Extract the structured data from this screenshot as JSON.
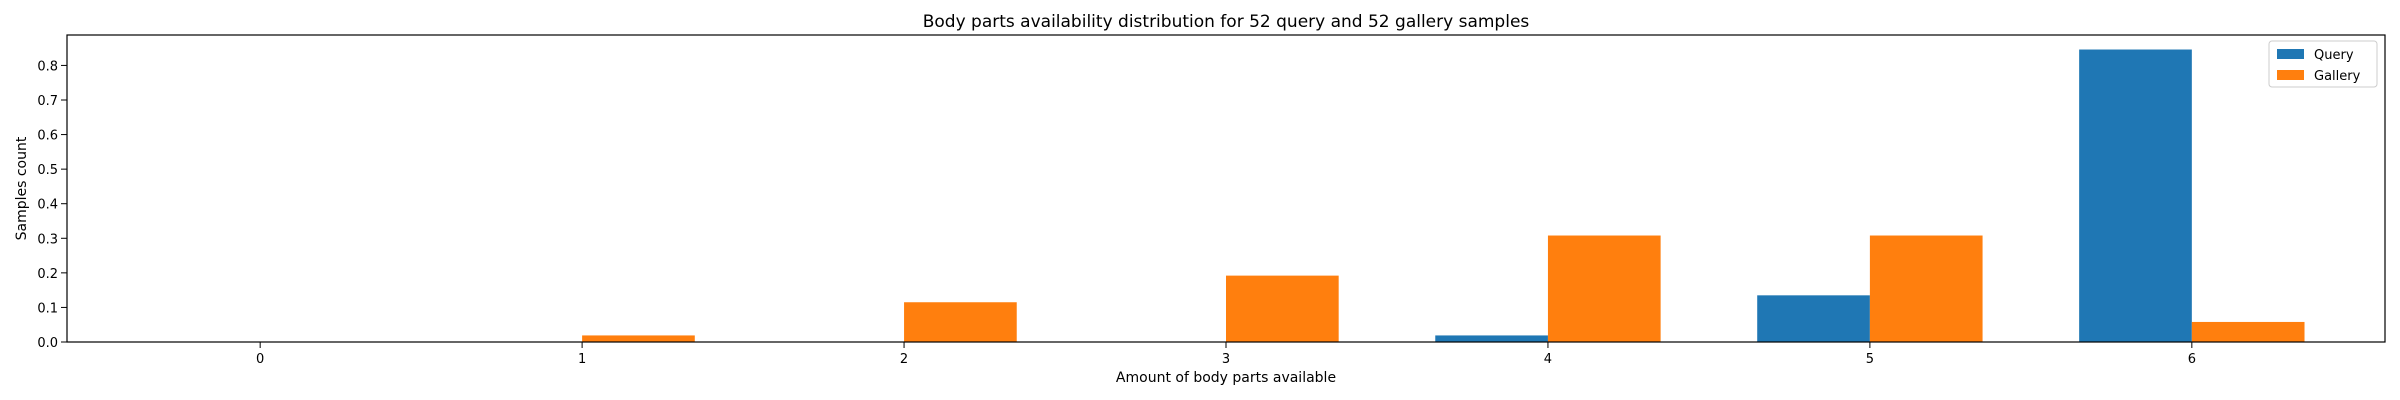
{
  "chart_data": {
    "type": "bar",
    "title": "Body parts availability distribution for 52 query and 52 gallery samples",
    "xlabel": "Amount of body parts available",
    "ylabel": "Samples count",
    "categories": [
      "0",
      "1",
      "2",
      "3",
      "4",
      "5",
      "6"
    ],
    "series": [
      {
        "name": "Query",
        "color": "#1f77b4",
        "values": [
          0.0,
          0.0,
          0.0,
          0.0,
          0.019,
          0.135,
          0.846
        ]
      },
      {
        "name": "Gallery",
        "color": "#ff7f0e",
        "values": [
          0.0,
          0.019,
          0.115,
          0.192,
          0.308,
          0.308,
          0.058
        ]
      }
    ],
    "ylim": [
      0,
      0.888
    ],
    "yticks": [
      "0.0",
      "0.1",
      "0.2",
      "0.3",
      "0.4",
      "0.5",
      "0.6",
      "0.7",
      "0.8"
    ],
    "legend": "top-right",
    "grid": false
  }
}
